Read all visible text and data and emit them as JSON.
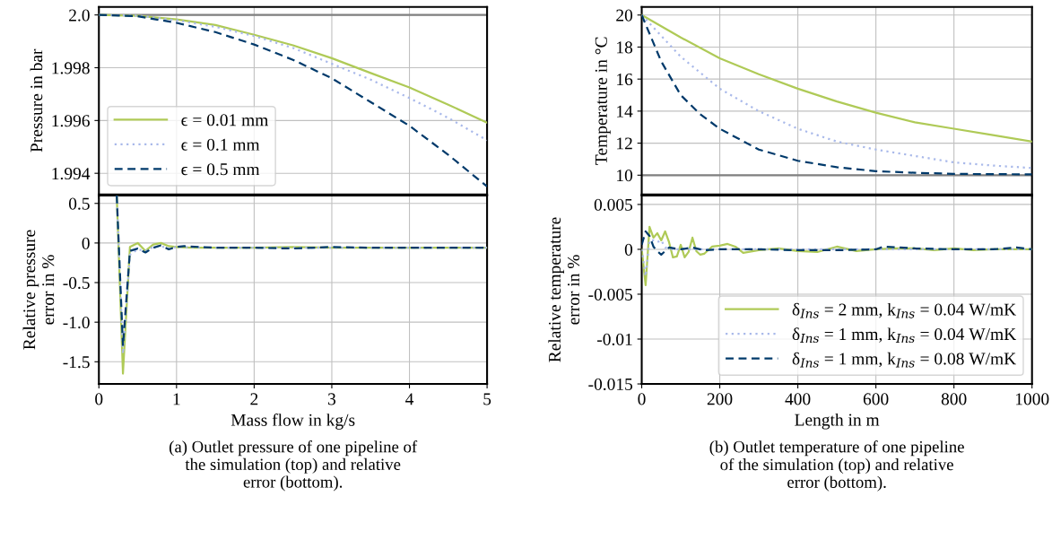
{
  "chart_data": [
    {
      "type": "line",
      "ylabel": "Pressure in bar",
      "xlim": [
        0,
        5
      ],
      "xticks": [
        0,
        1,
        2,
        3,
        4,
        5
      ],
      "ylim": [
        1.9932,
        2.0003
      ],
      "yticks": [
        1.994,
        1.996,
        1.998,
        {
          "value": 2,
          "label": "2.0"
        }
      ],
      "tick_labels": "y",
      "grid": true,
      "legend": "bottom left",
      "ref_lines": [
        {
          "axis": "y",
          "value": 2.0,
          "color": "#808080",
          "line_style": "solid"
        }
      ],
      "series": [
        {
          "name": "ϵ = 0.01 mm",
          "color": "#afca57",
          "line_style": "solid",
          "x": [
            0,
            0.5,
            1,
            1.5,
            2,
            2.5,
            3,
            3.5,
            4,
            4.5,
            5
          ],
          "values": [
            2.0,
            1.99997,
            1.99983,
            1.99962,
            1.99925,
            1.99885,
            1.99836,
            1.9978,
            1.99725,
            1.9966,
            1.99592
          ]
        },
        {
          "name": "ϵ = 0.1 mm",
          "color": "#a9b9ea",
          "line_style": "dotted",
          "x": [
            0,
            0.5,
            1,
            1.5,
            2,
            2.5,
            3,
            3.5,
            4,
            4.5,
            5
          ],
          "values": [
            2.0,
            1.99997,
            1.9998,
            1.99955,
            1.9992,
            1.99875,
            1.99815,
            1.99755,
            1.99685,
            1.9961,
            1.99525
          ]
        },
        {
          "name": "ϵ = 0.5 mm",
          "color": "#003a6b",
          "line_style": "dashed",
          "x": [
            0,
            0.5,
            1,
            1.5,
            2,
            2.5,
            3,
            3.5,
            4,
            4.5,
            5
          ],
          "values": [
            2.0,
            1.99995,
            1.9997,
            1.99935,
            1.99888,
            1.9983,
            1.9976,
            1.9967,
            1.9958,
            1.9947,
            1.9935
          ]
        }
      ]
    },
    {
      "type": "line",
      "ylabel": "Temperature in °C",
      "xlim": [
        0,
        1000
      ],
      "xticks": [
        0,
        200,
        400,
        600,
        800,
        1000
      ],
      "ylim": [
        8.8,
        20.5
      ],
      "yticks": [
        10,
        12,
        14,
        16,
        18,
        20
      ],
      "tick_labels": "y",
      "grid": true,
      "ref_lines": [
        {
          "axis": "y",
          "value": 10,
          "color": "#808080",
          "line_style": "solid"
        }
      ],
      "series": [
        {
          "color": "#afca57",
          "line_style": "solid",
          "x": [
            0,
            100,
            200,
            300,
            400,
            500,
            600,
            700,
            800,
            900,
            1000
          ],
          "values": [
            20,
            18.6,
            17.3,
            16.3,
            15.4,
            14.6,
            13.9,
            13.3,
            12.9,
            12.5,
            12.1
          ]
        },
        {
          "color": "#a9b9ea",
          "line_style": "dotted",
          "x": [
            0,
            100,
            200,
            300,
            400,
            500,
            600,
            700,
            800,
            900,
            1000
          ],
          "values": [
            20,
            17.4,
            15.4,
            14.0,
            12.9,
            12.1,
            11.6,
            11.2,
            10.8,
            10.6,
            10.45
          ]
        },
        {
          "color": "#003a6b",
          "line_style": "dashed",
          "x": [
            0,
            50,
            100,
            150,
            200,
            300,
            400,
            500,
            600,
            700,
            800,
            1000
          ],
          "values": [
            20,
            17.1,
            15.0,
            13.8,
            12.9,
            11.6,
            10.9,
            10.5,
            10.25,
            10.15,
            10.08,
            10.05
          ]
        }
      ]
    },
    {
      "type": "line",
      "ylabel": "Relative pressure\nerror in %",
      "xlabel": "Mass flow in kg/s",
      "xlim": [
        0,
        5
      ],
      "xticks": [
        0,
        1,
        2,
        3,
        4,
        5
      ],
      "ylim": [
        -1.78,
        0.6
      ],
      "yticks": [
        -1.5,
        {
          "value": -1,
          "label": "-1.0"
        },
        -0.5,
        0,
        0.5
      ],
      "grid": true,
      "annotations": [
        "(a) Outlet pressure of one pipeline of\nthe simulation (top) and relative\nerror (bottom)."
      ],
      "series": [
        {
          "color": "#afca57",
          "line_style": "solid",
          "x": [
            0.23,
            0.31,
            0.4,
            0.5,
            0.6,
            0.7,
            0.8,
            0.9,
            1.0,
            1.2,
            1.5,
            2.0,
            2.5,
            3,
            4,
            5
          ],
          "values": [
            0.6,
            -1.65,
            -0.05,
            0.0,
            -0.1,
            -0.02,
            0.0,
            -0.04,
            -0.05,
            -0.06,
            -0.06,
            -0.06,
            -0.05,
            -0.06,
            -0.06,
            -0.06
          ]
        },
        {
          "color": "#a9b9ea",
          "line_style": "dotted",
          "x": [
            0.23,
            0.31,
            0.4,
            0.5,
            0.6,
            0.7,
            0.8,
            0.9,
            1.0,
            1.5,
            2,
            3,
            5
          ],
          "values": [
            0.6,
            -1.4,
            -0.15,
            -0.08,
            -0.1,
            -0.05,
            -0.04,
            -0.07,
            -0.05,
            -0.06,
            -0.06,
            -0.06,
            -0.06
          ]
        },
        {
          "color": "#003a6b",
          "line_style": "dashed",
          "x": [
            0.23,
            0.31,
            0.4,
            0.5,
            0.6,
            0.7,
            0.8,
            0.9,
            1.0,
            1.1,
            1.5,
            2,
            2.5,
            3,
            3.5,
            5
          ],
          "values": [
            0.6,
            -1.3,
            -0.1,
            -0.07,
            -0.12,
            -0.06,
            -0.03,
            -0.08,
            -0.05,
            -0.04,
            -0.06,
            -0.06,
            -0.07,
            -0.05,
            -0.06,
            -0.06
          ]
        }
      ]
    },
    {
      "type": "line",
      "ylabel": "Relative temperature\nerror in %",
      "xlabel": "Length in m",
      "xlim": [
        0,
        1000
      ],
      "xticks": [
        0,
        200,
        400,
        600,
        800,
        1000
      ],
      "ylim": [
        -0.015,
        0.006
      ],
      "yticks": [
        -0.015,
        -0.01,
        -0.005,
        0,
        0.005
      ],
      "grid": true,
      "legend": "bottom right",
      "annotations": [
        "(b) Outlet temperature of one pipeline\nof the simulation (top) and relative\nerror (bottom)."
      ],
      "series": [
        {
          "name": "δ$_{Ins}$ = 2 mm, k$_{Ins}$ = 0.04 W/mK",
          "color": "#afca57",
          "line_style": "solid",
          "x": [
            0,
            10,
            20,
            30,
            40,
            50,
            60,
            70,
            80,
            90,
            100,
            110,
            120,
            130,
            140,
            150,
            160,
            180,
            200,
            220,
            240,
            260,
            300,
            350,
            400,
            450,
            500,
            550,
            600,
            650,
            700,
            750,
            800,
            850,
            900,
            1000
          ],
          "values": [
            0,
            -0.004,
            0.0025,
            0.0013,
            0.0018,
            0.001,
            0.002,
            0.0008,
            -0.0009,
            -0.0008,
            0.0005,
            -0.0009,
            -0.0003,
            0.0013,
            -0.0002,
            -0.0006,
            -0.0005,
            0.0003,
            0.0004,
            0.0006,
            0.0003,
            -0.0004,
            -0.0001,
            0.0001,
            -0.0002,
            -0.0003,
            0.0003,
            -0.0002,
            0,
            0.0001,
            0.0001,
            -0.0001,
            0.0001,
            -0.0001,
            0,
            0
          ]
        },
        {
          "name": "δ$_{Ins}$ = 1 mm, k$_{Ins}$ = 0.04 W/mK",
          "color": "#a9b9ea",
          "line_style": "dotted",
          "x": [
            0,
            10,
            20,
            30,
            40,
            50,
            60,
            80,
            100,
            200,
            400,
            600,
            800,
            1000
          ],
          "values": [
            0,
            -0.003,
            0.001,
            0.001,
            0.0008,
            0.001,
            0.0002,
            0,
            0,
            0,
            0,
            0,
            0,
            0
          ]
        },
        {
          "name": "δ$_{Ins}$ = 1 mm, k$_{Ins}$ = 0.08 W/mK",
          "color": "#003a6b",
          "line_style": "dashed",
          "x": [
            0,
            10,
            20,
            30,
            40,
            50,
            60,
            70,
            100,
            130,
            160,
            200,
            300,
            400,
            500,
            600,
            620,
            700,
            800,
            900,
            960,
            1000
          ],
          "values": [
            0.0005,
            0.002,
            0.0015,
            0.0003,
            -0.0002,
            -0.0006,
            -0.0002,
            0.0002,
            0,
            0.0002,
            -0.0001,
            0,
            0,
            -0.0001,
            -0.0001,
            0,
            0.0003,
            0.0001,
            0,
            0,
            0.0002,
            0
          ]
        }
      ]
    }
  ]
}
